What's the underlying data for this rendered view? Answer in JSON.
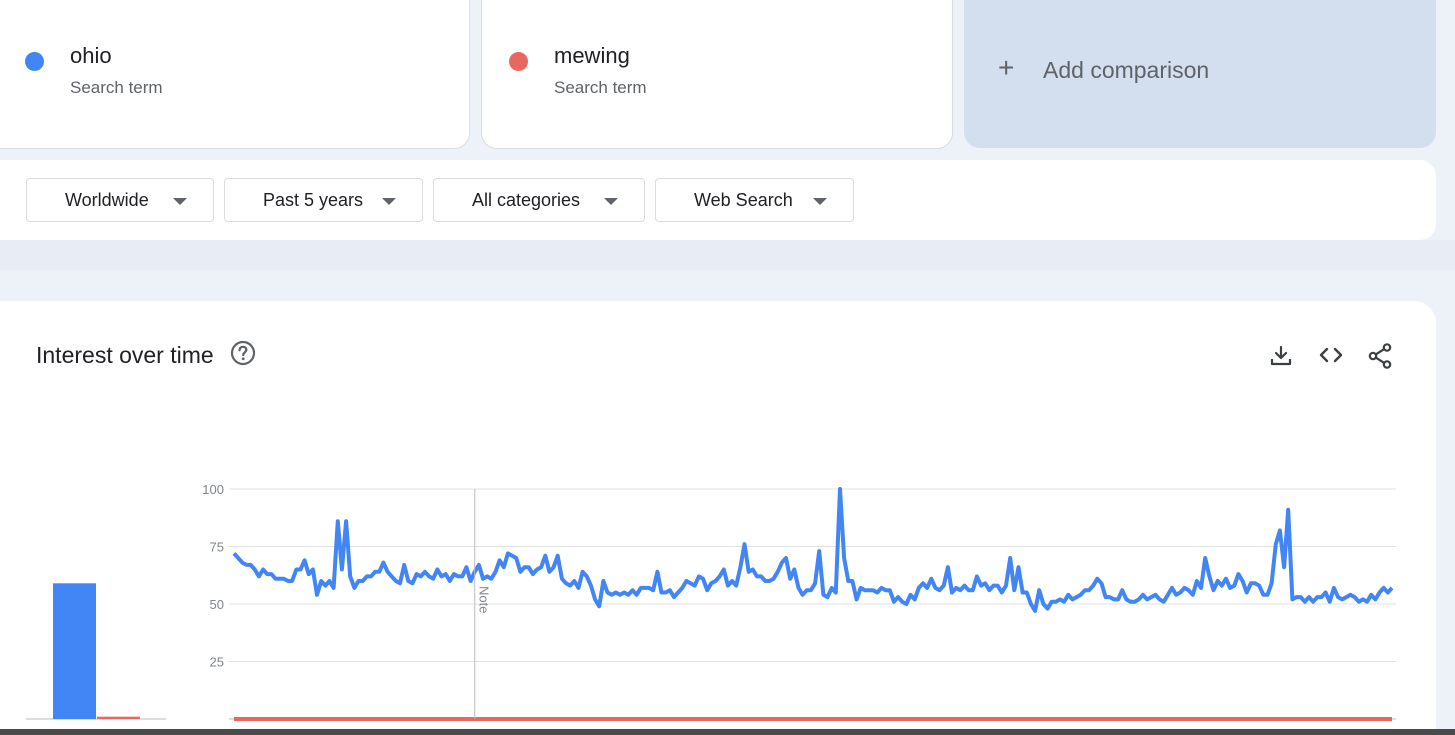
{
  "terms": [
    {
      "name": "ohio",
      "sub": "Search term",
      "color": "#4285f4"
    },
    {
      "name": "mewing",
      "sub": "Search term",
      "color": "#ea6761"
    }
  ],
  "add_comparison": {
    "icon": "plus-icon",
    "label": "Add comparison"
  },
  "filters": {
    "region": "Worldwide",
    "time_range": "Past 5 years",
    "category": "All categories",
    "property": "Web Search"
  },
  "chart": {
    "title": "Interest over time",
    "icons": [
      "help-icon",
      "download-icon",
      "embed-icon",
      "share-icon"
    ],
    "note": "Note"
  },
  "chart_data": [
    {
      "type": "bar",
      "title": "",
      "categories": [
        "ohio",
        "mewing"
      ],
      "values": [
        59,
        1
      ],
      "colors": [
        "#4285f4",
        "#ea6761"
      ],
      "ylim": [
        0,
        100
      ]
    },
    {
      "type": "line",
      "title": "",
      "xlabel": "",
      "ylabel": "",
      "ylim": [
        0,
        100
      ],
      "yticks": [
        25,
        50,
        75,
        100
      ],
      "grid": true,
      "annotation": {
        "label": "Note",
        "at_point": 58
      },
      "series": [
        {
          "name": "ohio",
          "color": "#4285f4",
          "values": [
            72,
            70,
            68,
            67,
            67,
            65,
            62,
            65,
            63,
            63,
            61,
            61,
            61,
            60,
            60,
            65,
            65,
            69,
            63,
            65,
            54,
            60,
            58,
            60,
            57,
            86,
            65,
            86,
            62,
            57,
            60,
            60,
            62,
            62,
            64,
            64,
            68,
            64,
            62,
            60,
            59,
            67,
            60,
            59,
            63,
            62,
            64,
            62,
            61,
            65,
            62,
            63,
            60,
            63,
            62,
            62,
            66,
            60,
            64,
            67,
            61,
            62,
            61,
            64,
            69,
            66,
            72,
            71,
            70,
            64,
            66,
            66,
            63,
            65,
            66,
            71,
            64,
            66,
            71,
            61,
            59,
            58,
            60,
            57,
            64,
            62,
            58,
            52,
            49,
            60,
            55,
            54,
            55,
            54,
            55,
            54,
            56,
            54,
            57,
            57,
            57,
            56,
            64,
            55,
            55,
            56,
            53,
            55,
            57,
            60,
            59,
            58,
            62,
            61,
            56,
            59,
            60,
            62,
            65,
            58,
            60,
            58,
            66,
            76,
            64,
            65,
            62,
            62,
            60,
            60,
            61,
            64,
            68,
            70,
            61,
            65,
            57,
            54,
            56,
            56,
            59,
            73,
            54,
            53,
            57,
            55,
            100,
            70,
            60,
            60,
            52,
            57,
            56,
            56,
            56,
            55,
            57,
            56,
            56,
            51,
            53,
            51,
            50,
            54,
            52,
            57,
            59,
            57,
            61,
            57,
            56,
            58,
            66,
            55,
            57,
            56,
            58,
            56,
            56,
            62,
            58,
            59,
            56,
            58,
            58,
            55,
            58,
            70,
            56,
            66,
            55,
            55,
            50,
            47,
            56,
            50,
            48,
            51,
            51,
            52,
            51,
            54,
            52,
            53,
            54,
            56,
            56,
            58,
            61,
            59,
            53,
            53,
            52,
            52,
            56,
            52,
            51,
            51,
            52,
            54,
            52,
            53,
            54,
            52,
            51,
            54,
            57,
            54,
            55,
            57,
            56,
            54,
            60,
            57,
            70,
            62,
            56,
            60,
            58,
            61,
            57,
            58,
            63,
            60,
            55,
            59,
            59,
            58,
            54,
            54,
            59,
            76,
            82,
            66,
            91,
            52,
            53,
            53,
            51,
            53,
            51,
            53,
            53,
            55,
            51,
            57,
            53,
            52,
            53,
            54,
            53,
            51,
            52,
            51,
            54,
            52,
            55,
            57,
            55,
            57
          ]
        },
        {
          "name": "mewing",
          "color": "#ea6761",
          "values": [
            0,
            0,
            0,
            0,
            0,
            0,
            0,
            0,
            0,
            0,
            0,
            0,
            0,
            0,
            0,
            0,
            0,
            0,
            0,
            0,
            0,
            0,
            0,
            0,
            0,
            0,
            0,
            0,
            0,
            0,
            0,
            0,
            0,
            0,
            0,
            0,
            0,
            0,
            0,
            0,
            0,
            0,
            0,
            0,
            0,
            0,
            0,
            0,
            0,
            0,
            0,
            0,
            0,
            0,
            0,
            0,
            0,
            0,
            0,
            0,
            0,
            0,
            0,
            0,
            0,
            0,
            0,
            0,
            0,
            0,
            0,
            0,
            0,
            0,
            0,
            0,
            0,
            0,
            0,
            0,
            0,
            0,
            0,
            0,
            0,
            0,
            0,
            0,
            0,
            0,
            0,
            0,
            0,
            0,
            0,
            0,
            0,
            0,
            0,
            0,
            0,
            0,
            0,
            0,
            0,
            0,
            0,
            0,
            0,
            0,
            0,
            0,
            0,
            0,
            0,
            0,
            0,
            0,
            0,
            0,
            0,
            0,
            0,
            0,
            0,
            0,
            0,
            0,
            0,
            0,
            0,
            0,
            0,
            0,
            0,
            0,
            0,
            0,
            0,
            0,
            0,
            0,
            0,
            0,
            0,
            0,
            0,
            0,
            0,
            0,
            0,
            0,
            0,
            0,
            0,
            0,
            0,
            0,
            0,
            0,
            0,
            0,
            0,
            0,
            0,
            0,
            0,
            0,
            0,
            0,
            0,
            0,
            0,
            0,
            0,
            0,
            0,
            0,
            0,
            0,
            0,
            0,
            0,
            0,
            0,
            0,
            0,
            0,
            0,
            0,
            0,
            0,
            0,
            0,
            0,
            0,
            0,
            0,
            0,
            0,
            0,
            0,
            0,
            0,
            0,
            0,
            0,
            0,
            0,
            0,
            0,
            0,
            0,
            0,
            0,
            0,
            0,
            0,
            0,
            0,
            0,
            0,
            0,
            0,
            0,
            0,
            0,
            0,
            0,
            0,
            0,
            0,
            0,
            0,
            0,
            0,
            0,
            0,
            0,
            0,
            0,
            0,
            0,
            0,
            0,
            0,
            0,
            0,
            0,
            0,
            0,
            0,
            0,
            0,
            0,
            0,
            0,
            0,
            0,
            0,
            0,
            0,
            0,
            0,
            0,
            0,
            0,
            0,
            0,
            0,
            0,
            0,
            0,
            0,
            0,
            0,
            0,
            0,
            0,
            0,
            0,
            0,
            0,
            0,
            0,
            0,
            0,
            0,
            0,
            0
          ]
        }
      ]
    }
  ]
}
